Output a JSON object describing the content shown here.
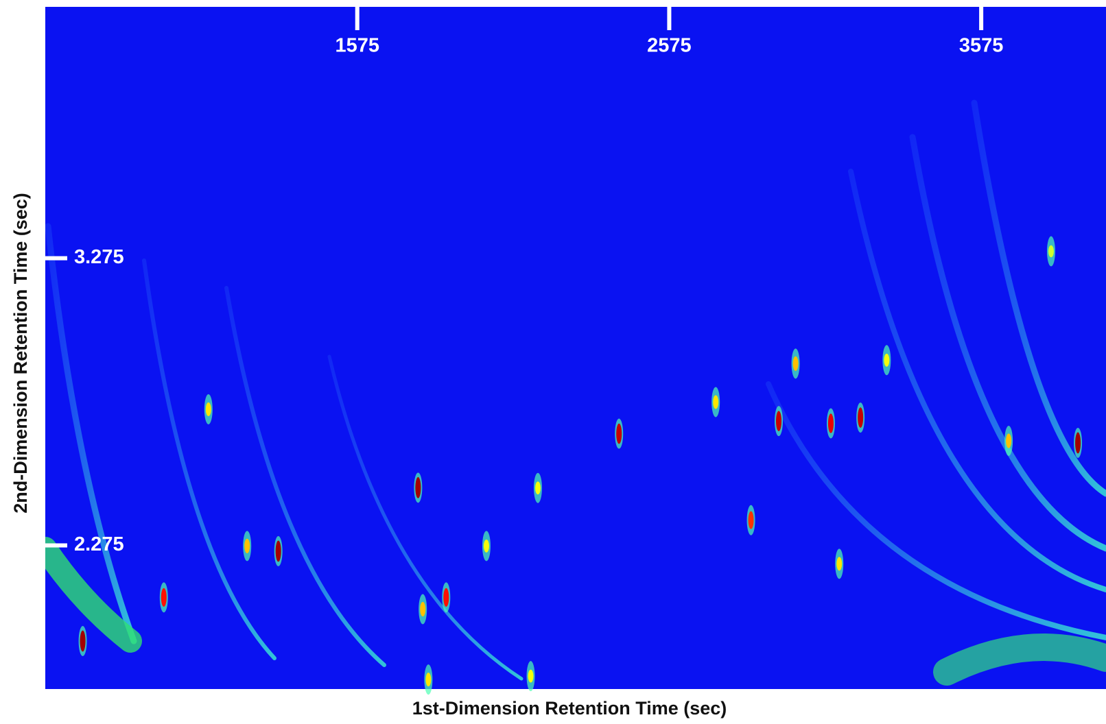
{
  "chart_data": {
    "type": "scatter",
    "x_label": "1st-Dimension Retention Time (sec)",
    "y_label": "2nd-Dimension Retention Time (sec)",
    "xlim": [
      575,
      3975
    ],
    "xticks": [
      1575,
      2575,
      3575
    ],
    "ylim": [
      1.775,
      4.15
    ],
    "yticks": [
      2.275,
      3.275
    ],
    "colormap": "jet",
    "background": "#0a12f2",
    "tick_color": "#ffffff",
    "x": [
      695,
      955,
      1098,
      1322,
      1222,
      1770,
      1860,
      1785,
      2414,
      2724,
      2926,
      2980,
      3093,
      3188,
      2837,
      3120,
      3885,
      3663,
      3799,
      3272,
      2154,
      1989,
      1803,
      2131
    ],
    "y": [
      1.942,
      2.094,
      2.749,
      2.255,
      2.273,
      2.476,
      2.094,
      2.053,
      2.664,
      2.774,
      2.708,
      2.908,
      2.7,
      2.72,
      2.363,
      2.211,
      2.632,
      2.639,
      3.299,
      2.92,
      2.475,
      2.273,
      1.808,
      1.82
    ],
    "intensity": [
      0.95,
      0.8,
      0.5,
      0.95,
      0.55,
      0.95,
      0.8,
      0.55,
      0.9,
      0.5,
      0.9,
      0.55,
      0.85,
      0.9,
      0.75,
      0.5,
      0.95,
      0.55,
      0.4,
      0.45,
      0.45,
      0.45,
      0.5,
      0.45
    ]
  }
}
